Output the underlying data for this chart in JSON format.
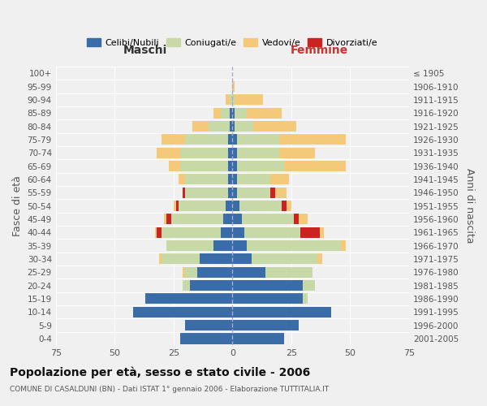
{
  "age_groups": [
    "0-4",
    "5-9",
    "10-14",
    "15-19",
    "20-24",
    "25-29",
    "30-34",
    "35-39",
    "40-44",
    "45-49",
    "50-54",
    "55-59",
    "60-64",
    "65-69",
    "70-74",
    "75-79",
    "80-84",
    "85-89",
    "90-94",
    "95-99",
    "100+"
  ],
  "birth_years": [
    "2001-2005",
    "1996-2000",
    "1991-1995",
    "1986-1990",
    "1981-1985",
    "1976-1980",
    "1971-1975",
    "1966-1970",
    "1961-1965",
    "1956-1960",
    "1951-1955",
    "1946-1950",
    "1941-1945",
    "1936-1940",
    "1931-1935",
    "1926-1930",
    "1921-1925",
    "1916-1920",
    "1911-1915",
    "1906-1910",
    "≤ 1905"
  ],
  "male": {
    "celibi": [
      22,
      20,
      42,
      37,
      18,
      15,
      14,
      8,
      5,
      4,
      3,
      2,
      2,
      2,
      2,
      2,
      1,
      1,
      0,
      0,
      0
    ],
    "coniugati": [
      0,
      0,
      0,
      0,
      3,
      5,
      16,
      20,
      25,
      22,
      20,
      18,
      18,
      20,
      20,
      18,
      9,
      4,
      1,
      0,
      0
    ],
    "vedovi": [
      0,
      0,
      0,
      0,
      0,
      1,
      1,
      0,
      1,
      1,
      1,
      0,
      3,
      5,
      10,
      10,
      7,
      3,
      2,
      0,
      0
    ],
    "divorziati": [
      0,
      0,
      0,
      0,
      0,
      0,
      0,
      0,
      2,
      2,
      1,
      1,
      0,
      0,
      0,
      0,
      0,
      0,
      0,
      0,
      0
    ]
  },
  "female": {
    "nubili": [
      22,
      28,
      42,
      30,
      30,
      14,
      8,
      6,
      5,
      4,
      3,
      2,
      2,
      2,
      2,
      2,
      1,
      1,
      0,
      0,
      0
    ],
    "coniugate": [
      0,
      0,
      0,
      2,
      5,
      20,
      28,
      40,
      24,
      22,
      18,
      14,
      14,
      20,
      18,
      18,
      8,
      5,
      1,
      0,
      0
    ],
    "vedove": [
      0,
      0,
      0,
      0,
      0,
      0,
      2,
      2,
      2,
      4,
      2,
      5,
      8,
      26,
      15,
      28,
      18,
      15,
      12,
      1,
      0
    ],
    "divorziate": [
      0,
      0,
      0,
      0,
      0,
      0,
      0,
      0,
      8,
      2,
      2,
      2,
      0,
      0,
      0,
      0,
      0,
      0,
      0,
      0,
      0
    ]
  },
  "colors": {
    "celibi": "#3a6da8",
    "coniugati": "#c8d9a8",
    "vedovi": "#f5c97a",
    "divorziati": "#cc2222"
  },
  "title": "Popolazione per età, sesso e stato civile - 2006",
  "subtitle": "COMUNE DI CASALDUNI (BN) - Dati ISTAT 1° gennaio 2006 - Elaborazione TUTTITALIA.IT",
  "xlabel_left": "Maschi",
  "xlabel_right": "Femmine",
  "ylabel_left": "Fasce di età",
  "ylabel_right": "Anni di nascita",
  "xlim": 75,
  "legend_labels": [
    "Celibi/Nubili",
    "Coniugati/e",
    "Vedovi/e",
    "Divorziati/e"
  ],
  "background_color": "#f0f0f0"
}
